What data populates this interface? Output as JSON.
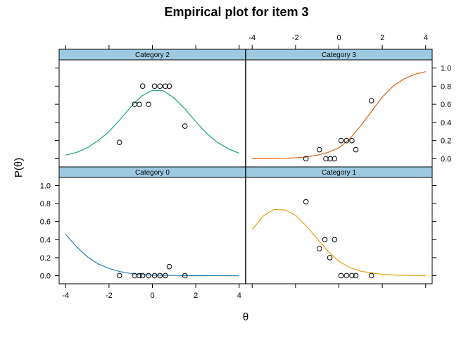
{
  "chart_data": {
    "type": "scatter",
    "title": "Empirical plot for item 3",
    "xlabel": "θ",
    "ylabel": "P(θ)",
    "xlim": [
      -4.3,
      4.3
    ],
    "ylim": [
      -0.09,
      1.09
    ],
    "x_ticks": [
      -4,
      -2,
      0,
      2,
      4
    ],
    "y_ticks": [
      0.0,
      0.2,
      0.4,
      0.6,
      0.8,
      1.0
    ],
    "x_tick_labels": [
      "-4",
      "-2",
      "0",
      "2",
      "4"
    ],
    "y_tick_labels": [
      "0.0",
      "0.2",
      "0.4",
      "0.6",
      "0.8",
      "1.0"
    ],
    "strip_color": "#9ecae1",
    "panels": [
      {
        "name": "Category 0",
        "curve_color": "#2b7fb8",
        "curve": {
          "x": [
            -4,
            -3.5,
            -3,
            -2.5,
            -2,
            -1.5,
            -1,
            -0.5,
            0,
            0.5,
            1,
            1.5,
            2,
            2.5,
            3,
            3.5,
            4
          ],
          "y": [
            0.46,
            0.32,
            0.21,
            0.13,
            0.08,
            0.045,
            0.025,
            0.013,
            0.007,
            0.004,
            0.002,
            0.001,
            0.0005,
            0.0003,
            0.0001,
            0,
            0
          ]
        },
        "points": {
          "x": [
            -1.52,
            -0.82,
            -0.6,
            -0.45,
            -0.18,
            0.1,
            0.35,
            0.6,
            0.78,
            1.5
          ],
          "y": [
            0,
            0,
            0,
            0,
            0,
            0,
            0,
            0,
            0.1,
            0
          ]
        }
      },
      {
        "name": "Category 1",
        "curve_color": "#e5a210",
        "curve": {
          "x": [
            -4,
            -3.5,
            -3,
            -2.5,
            -2,
            -1.5,
            -1,
            -0.5,
            0,
            0.5,
            1,
            1.5,
            2,
            2.5,
            3,
            3.5,
            4
          ],
          "y": [
            0.51,
            0.66,
            0.735,
            0.73,
            0.67,
            0.55,
            0.41,
            0.27,
            0.16,
            0.09,
            0.05,
            0.03,
            0.015,
            0.008,
            0.004,
            0.002,
            0.001
          ]
        },
        "points": {
          "x": [
            -1.52,
            -0.9,
            -0.65,
            -0.42,
            -0.2,
            0.1,
            0.35,
            0.6,
            0.78,
            1.5
          ],
          "y": [
            0.82,
            0.3,
            0.4,
            0.2,
            0.4,
            0,
            0,
            0,
            0,
            0
          ]
        }
      },
      {
        "name": "Category 2",
        "curve_color": "#1aa37f",
        "curve": {
          "x": [
            -4,
            -3.5,
            -3,
            -2.5,
            -2,
            -1.5,
            -1,
            -0.5,
            0,
            0.5,
            1,
            1.5,
            2,
            2.5,
            3,
            3.5,
            4
          ],
          "y": [
            0.04,
            0.07,
            0.12,
            0.2,
            0.3,
            0.43,
            0.57,
            0.69,
            0.755,
            0.75,
            0.67,
            0.55,
            0.41,
            0.28,
            0.18,
            0.11,
            0.06
          ]
        },
        "points": {
          "x": [
            -1.52,
            -0.82,
            -0.6,
            -0.45,
            -0.18,
            0.1,
            0.35,
            0.6,
            0.78,
            1.5
          ],
          "y": [
            0.18,
            0.6,
            0.6,
            0.8,
            0.6,
            0.8,
            0.8,
            0.8,
            0.8,
            0.36
          ]
        }
      },
      {
        "name": "Category 3",
        "curve_color": "#d95f0e",
        "curve": {
          "x": [
            -4,
            -3.5,
            -3,
            -2.5,
            -2,
            -1.5,
            -1,
            -0.5,
            0,
            0.5,
            1,
            1.5,
            2,
            2.5,
            3,
            3.5,
            4
          ],
          "y": [
            0,
            0.001,
            0.003,
            0.005,
            0.01,
            0.02,
            0.04,
            0.07,
            0.12,
            0.22,
            0.36,
            0.52,
            0.68,
            0.8,
            0.88,
            0.93,
            0.96
          ]
        },
        "points": {
          "x": [
            -1.52,
            -0.9,
            -0.6,
            -0.4,
            -0.2,
            0.1,
            0.35,
            0.6,
            0.78,
            1.5
          ],
          "y": [
            0,
            0.1,
            0,
            0,
            0,
            0.2,
            0.2,
            0.2,
            0.1,
            0.64
          ]
        }
      }
    ]
  }
}
